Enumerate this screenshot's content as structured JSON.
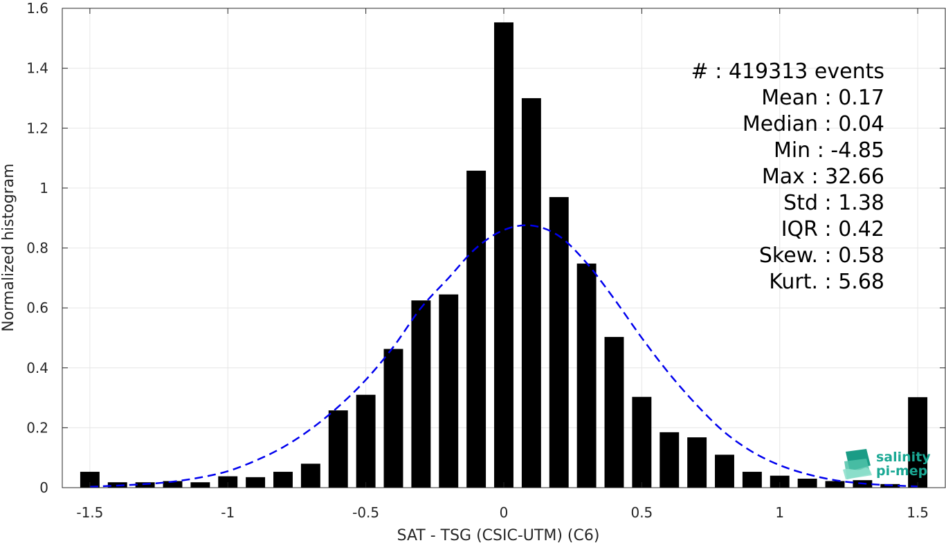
{
  "chart_data": {
    "type": "bar",
    "xlabel": "SAT - TSG (CSIC-UTM) (C6)",
    "ylabel": "Normalized histogram",
    "xlim": [
      -1.6,
      1.6
    ],
    "ylim": [
      0,
      1.6
    ],
    "xticks": [
      -1.5,
      -1,
      -0.5,
      0,
      0.5,
      1,
      1.5
    ],
    "xtick_labels": [
      "-1.5",
      "-1",
      "-0.5",
      "0",
      "0.5",
      "1",
      "1.5"
    ],
    "yticks": [
      0,
      0.2,
      0.4,
      0.6,
      0.8,
      1,
      1.2,
      1.4,
      1.6
    ],
    "ytick_labels": [
      "0",
      "0.2",
      "0.4",
      "0.6",
      "0.8",
      "1",
      "1.2",
      "1.4",
      "1.6"
    ],
    "grid": true,
    "bar_width": 0.07,
    "bars": {
      "x": [
        -1.5,
        -1.4,
        -1.3,
        -1.2,
        -1.1,
        -1.0,
        -0.9,
        -0.8,
        -0.7,
        -0.6,
        -0.5,
        -0.4,
        -0.3,
        -0.2,
        -0.1,
        0.0,
        0.1,
        0.2,
        0.3,
        0.4,
        0.5,
        0.6,
        0.7,
        0.8,
        0.9,
        1.0,
        1.1,
        1.2,
        1.3,
        1.4,
        1.5
      ],
      "values": [
        0.053,
        0.018,
        0.018,
        0.022,
        0.018,
        0.038,
        0.035,
        0.053,
        0.08,
        0.258,
        0.31,
        0.463,
        0.625,
        0.645,
        1.058,
        1.553,
        1.3,
        0.97,
        0.748,
        0.503,
        0.303,
        0.185,
        0.168,
        0.11,
        0.053,
        0.04,
        0.03,
        0.022,
        0.025,
        0.012,
        0.302
      ],
      "color": "#000000"
    },
    "fit_curve": {
      "style": "dashed",
      "color": "#0000ee",
      "x": [
        -1.5,
        -1.4,
        -1.3,
        -1.2,
        -1.1,
        -1.0,
        -0.9,
        -0.8,
        -0.7,
        -0.6,
        -0.5,
        -0.4,
        -0.3,
        -0.2,
        -0.1,
        0.0,
        0.1,
        0.2,
        0.3,
        0.4,
        0.5,
        0.6,
        0.7,
        0.8,
        0.9,
        1.0,
        1.1,
        1.2,
        1.3,
        1.4,
        1.5
      ],
      "values": [
        0.003,
        0.007,
        0.012,
        0.02,
        0.034,
        0.055,
        0.09,
        0.135,
        0.195,
        0.27,
        0.36,
        0.47,
        0.6,
        0.7,
        0.8,
        0.86,
        0.875,
        0.84,
        0.75,
        0.63,
        0.5,
        0.38,
        0.275,
        0.185,
        0.12,
        0.075,
        0.045,
        0.025,
        0.014,
        0.008,
        0.004
      ]
    },
    "stats_lines": [
      "#  : 419313 events",
      "Mean : 0.17",
      "Median : 0.04",
      "Min : -4.85",
      "Max : 32.66",
      "Std : 1.38",
      "IQR : 0.42",
      "Skew. : 0.58",
      "Kurt. : 5.68"
    ]
  },
  "logo": {
    "line1": "salinity",
    "line2": "pi-mep",
    "color": "#1aa894"
  }
}
